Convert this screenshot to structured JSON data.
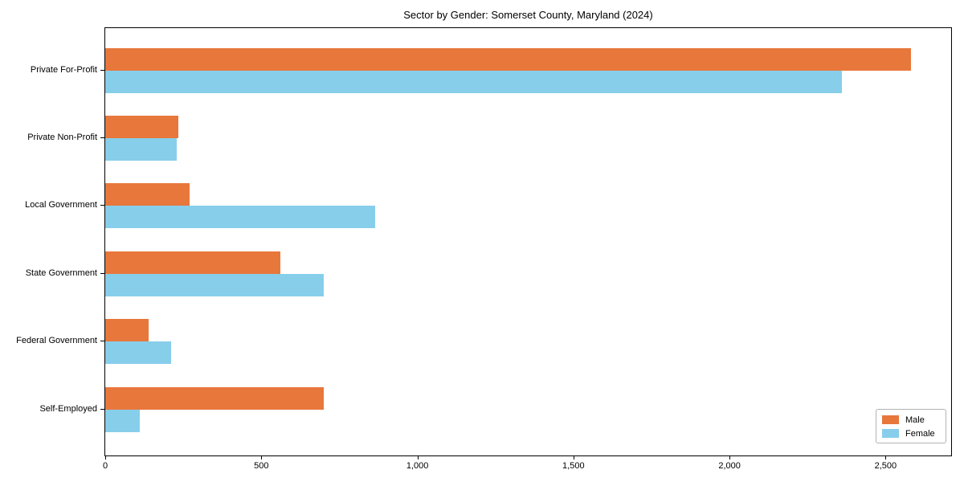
{
  "chart_data": {
    "type": "bar",
    "orientation": "horizontal",
    "title": "Sector by Gender: Somerset County, Maryland (2024)",
    "categories": [
      "Private For-Profit",
      "Private Non-Profit",
      "Local Government",
      "State Government",
      "Federal Government",
      "Self-Employed"
    ],
    "series": [
      {
        "name": "Male",
        "color": "#e8773c",
        "values": [
          2580,
          235,
          270,
          560,
          140,
          700
        ]
      },
      {
        "name": "Female",
        "color": "#87ceeb",
        "values": [
          2360,
          230,
          865,
          700,
          210,
          110
        ]
      }
    ],
    "xlabel": "",
    "ylabel": "",
    "xlim": [
      0,
      2710
    ],
    "xticks": [
      0,
      500,
      1000,
      1500,
      2000,
      2500
    ],
    "xtick_labels": [
      "0",
      "500",
      "1,000",
      "1,500",
      "2,000",
      "2,500"
    ],
    "grid": false,
    "legend_position": "lower right",
    "plot_background": "#ffffff",
    "spine_color": "#000000"
  }
}
